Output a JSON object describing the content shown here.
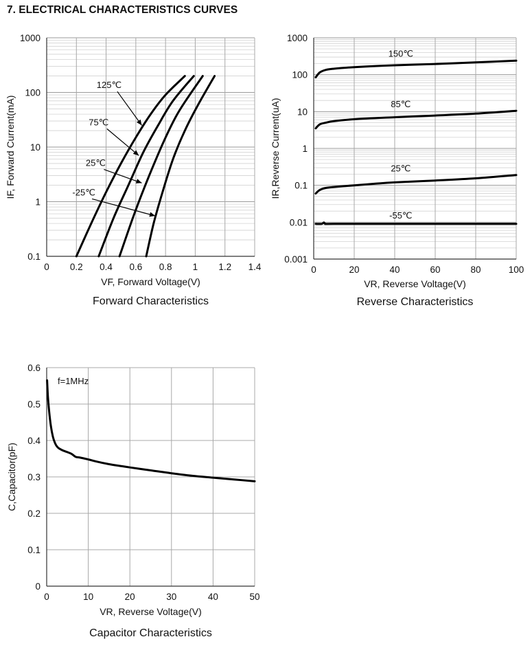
{
  "heading": "7. ELECTRICAL CHARACTERISTICS CURVES",
  "chart_data": [
    {
      "id": "forward",
      "type": "line",
      "title": "Forward Characteristics",
      "xlabel": "VF, Forward Voltage(V)",
      "ylabel": "IF, Forward Current(mA)",
      "xlim": [
        0,
        1.4
      ],
      "ylim": [
        0.1,
        1000
      ],
      "yscale": "log",
      "grid": true,
      "xticks": [
        "0",
        "0.2",
        "0.4",
        "0.6",
        "0.8",
        "1",
        "1.2",
        "1.4"
      ],
      "yticks": [
        "0.1",
        "1",
        "10",
        "100",
        "1000"
      ],
      "series": [
        {
          "name": "125℃",
          "x": [
            0.2,
            0.3,
            0.4,
            0.5,
            0.6,
            0.7,
            0.8,
            0.93
          ],
          "y": [
            0.1,
            0.4,
            1.5,
            5,
            15,
            40,
            90,
            200
          ]
        },
        {
          "name": "75℃",
          "x": [
            0.35,
            0.45,
            0.55,
            0.65,
            0.75,
            0.85,
            0.99
          ],
          "y": [
            0.1,
            0.5,
            2,
            8,
            25,
            70,
            200
          ]
        },
        {
          "name": "25℃",
          "x": [
            0.49,
            0.59,
            0.69,
            0.79,
            0.89,
            1.05
          ],
          "y": [
            0.1,
            0.6,
            3,
            13,
            45,
            200
          ]
        },
        {
          "name": "-25℃",
          "x": [
            0.67,
            0.72,
            0.78,
            0.85,
            0.93,
            1.02,
            1.13
          ],
          "y": [
            0.1,
            0.4,
            1.5,
            6,
            20,
            60,
            200
          ]
        }
      ],
      "labels": [
        {
          "text": "125℃",
          "x": 0.42,
          "y": 120,
          "tx": 0.64,
          "ty": 25
        },
        {
          "text": "75℃",
          "x": 0.35,
          "y": 25,
          "tx": 0.62,
          "ty": 7
        },
        {
          "text": "25℃",
          "x": 0.33,
          "y": 4.5,
          "tx": 0.64,
          "ty": 2.2
        },
        {
          "text": "-25℃",
          "x": 0.25,
          "y": 1.3,
          "tx": 0.73,
          "ty": 0.55
        }
      ]
    },
    {
      "id": "reverse",
      "type": "line",
      "title": "Reverse Characteristics",
      "xlabel": "VR, Reverse Voltage(V)",
      "ylabel": "IR,Reverse Current(uA)",
      "xlim": [
        0,
        100
      ],
      "ylim": [
        0.001,
        1000
      ],
      "yscale": "log",
      "grid": true,
      "xticks": [
        "0",
        "20",
        "40",
        "60",
        "80",
        "100"
      ],
      "yticks": [
        "0.001",
        "0.01",
        "0.1",
        "1",
        "10",
        "100",
        "1000"
      ],
      "series": [
        {
          "name": "150℃",
          "x": [
            1,
            3,
            6,
            10,
            20,
            40,
            60,
            80,
            100
          ],
          "y": [
            85,
            115,
            135,
            145,
            160,
            180,
            195,
            215,
            240
          ]
        },
        {
          "name": "85℃",
          "x": [
            1,
            3,
            6,
            10,
            20,
            40,
            60,
            80,
            100
          ],
          "y": [
            3.5,
            4.5,
            5.0,
            5.5,
            6.2,
            7.0,
            7.8,
            8.8,
            10.5
          ]
        },
        {
          "name": "25℃",
          "x": [
            1,
            3,
            6,
            10,
            15,
            20,
            30,
            40,
            60,
            80,
            100
          ],
          "y": [
            0.06,
            0.075,
            0.085,
            0.09,
            0.095,
            0.1,
            0.11,
            0.12,
            0.135,
            0.155,
            0.19
          ]
        },
        {
          "name": "-55℃",
          "x": [
            1,
            4,
            5,
            6,
            10,
            50,
            100
          ],
          "y": [
            0.009,
            0.009,
            0.0098,
            0.009,
            0.009,
            0.009,
            0.009
          ]
        }
      ],
      "labels": [
        {
          "text": "150℃",
          "x": 43,
          "y": 310
        },
        {
          "text": "85℃",
          "x": 43,
          "y": 13
        },
        {
          "text": "25℃",
          "x": 43,
          "y": 0.24
        },
        {
          "text": "-55℃",
          "x": 43,
          "y": 0.0125
        }
      ]
    },
    {
      "id": "capacitor",
      "type": "line",
      "title": "Capacitor Characteristics",
      "xlabel": "VR, Reverse Voltage(V)",
      "ylabel": "C,Capacitor(pF)",
      "xlim": [
        0,
        50
      ],
      "ylim": [
        0,
        0.6
      ],
      "grid": true,
      "xticks": [
        "0",
        "10",
        "20",
        "30",
        "40",
        "50"
      ],
      "yticks": [
        "0",
        "0.1",
        "0.2",
        "0.3",
        "0.4",
        "0.5",
        "0.6"
      ],
      "annotation": "f=1MHz",
      "series": [
        {
          "name": "",
          "x": [
            0.1,
            0.3,
            0.6,
            1,
            1.5,
            2,
            2.5,
            3,
            4,
            5,
            6,
            7,
            8,
            10,
            12,
            15,
            20,
            25,
            30,
            35,
            40,
            45,
            50
          ],
          "y": [
            0.565,
            0.52,
            0.48,
            0.44,
            0.41,
            0.393,
            0.383,
            0.378,
            0.372,
            0.368,
            0.363,
            0.355,
            0.353,
            0.348,
            0.342,
            0.335,
            0.326,
            0.318,
            0.31,
            0.303,
            0.298,
            0.293,
            0.288
          ]
        }
      ]
    }
  ]
}
